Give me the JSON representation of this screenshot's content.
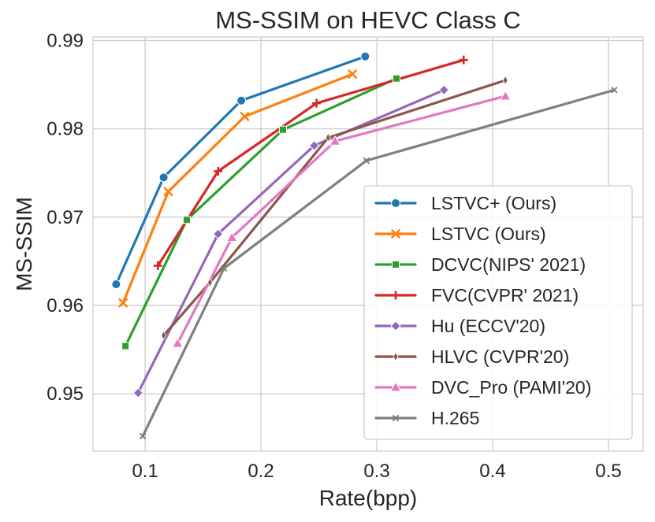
{
  "chart_data": {
    "type": "line",
    "title": "MS-SSIM on HEVC Class C",
    "xlabel": "Rate(bpp)",
    "ylabel": "MS-SSIM",
    "xlim": [
      0.055,
      0.53
    ],
    "ylim": [
      0.9435,
      0.9904
    ],
    "xticks": [
      0.1,
      0.2,
      0.3,
      0.4,
      0.5
    ],
    "xtick_labels": [
      "0.1",
      "0.2",
      "0.3",
      "0.4",
      "0.5"
    ],
    "yticks": [
      0.95,
      0.96,
      0.97,
      0.98,
      0.99
    ],
    "ytick_labels": [
      "0.95",
      "0.96",
      "0.97",
      "0.98",
      "0.99"
    ],
    "grid": true,
    "legend_position": "lower-right",
    "series": [
      {
        "name": "LSTVC+ (Ours)",
        "color": "#1f77b4",
        "marker": "circle",
        "x": [
          0.075,
          0.116,
          0.183,
          0.29
        ],
        "y": [
          0.9624,
          0.9745,
          0.9832,
          0.9882
        ]
      },
      {
        "name": "LSTVC (Ours)",
        "color": "#ff7f0e",
        "marker": "x",
        "x": [
          0.081,
          0.12,
          0.186,
          0.279
        ],
        "y": [
          0.9603,
          0.9729,
          0.9814,
          0.9862
        ]
      },
      {
        "name": "DCVC(NIPS' 2021)",
        "color": "#2ca02c",
        "marker": "square",
        "x": [
          0.083,
          0.136,
          0.219,
          0.317
        ],
        "y": [
          0.9554,
          0.9697,
          0.9799,
          0.9857
        ]
      },
      {
        "name": "FVC(CVPR' 2021)",
        "color": "#d62728",
        "marker": "plus",
        "x": [
          0.111,
          0.163,
          0.248,
          0.375
        ],
        "y": [
          0.9645,
          0.9752,
          0.9829,
          0.9878
        ]
      },
      {
        "name": "Hu (ECCV'20)",
        "color": "#9467bd",
        "marker": "diamond",
        "x": [
          0.094,
          0.163,
          0.246,
          0.358
        ],
        "y": [
          0.9501,
          0.9681,
          0.9781,
          0.9844
        ]
      },
      {
        "name": "HLVC (CVPR'20)",
        "color": "#8c564b",
        "marker": "thin_diamond",
        "x": [
          0.116,
          0.156,
          0.258,
          0.411
        ],
        "y": [
          0.9566,
          0.9626,
          0.979,
          0.9855
        ]
      },
      {
        "name": "DVC_Pro (PAMI'20)",
        "color": "#e377c2",
        "marker": "triangle",
        "x": [
          0.128,
          0.175,
          0.264,
          0.411
        ],
        "y": [
          0.9557,
          0.9677,
          0.9786,
          0.9837
        ]
      },
      {
        "name": "H.265",
        "color": "#7f7f7f",
        "marker": "x_small",
        "x": [
          0.098,
          0.168,
          0.291,
          0.505
        ],
        "y": [
          0.9452,
          0.9642,
          0.9764,
          0.9844
        ]
      }
    ]
  }
}
